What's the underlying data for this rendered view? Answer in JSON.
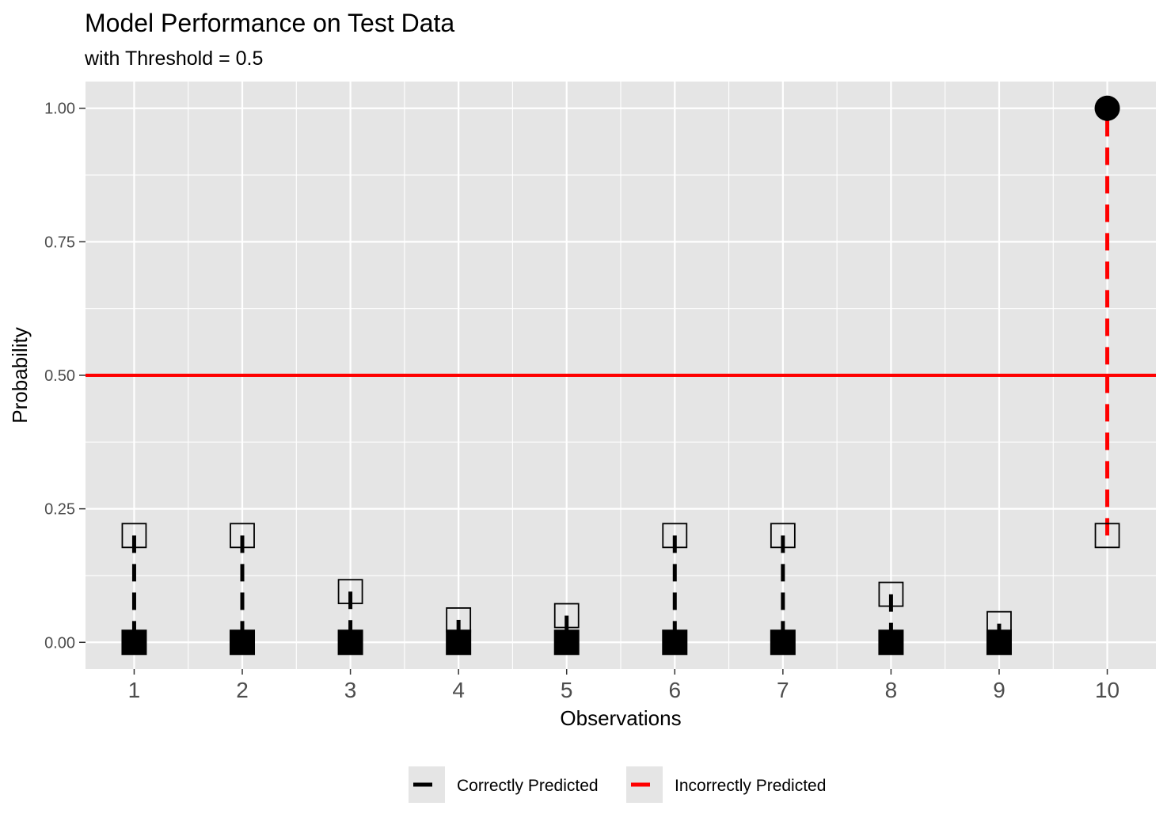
{
  "chart_data": {
    "type": "scatter",
    "title": "Model Performance on Test Data",
    "subtitle": "with Threshold = 0.5",
    "xlabel": "Observations",
    "ylabel": "Probability",
    "categories": [
      "1",
      "2",
      "3",
      "4",
      "5",
      "6",
      "7",
      "8",
      "9",
      "10"
    ],
    "x": [
      1,
      2,
      3,
      4,
      5,
      6,
      7,
      8,
      9,
      10
    ],
    "actual": [
      0,
      0,
      0,
      0,
      0,
      0,
      0,
      0,
      0,
      1
    ],
    "predicted": [
      0.2,
      0.2,
      0.095,
      0.042,
      0.05,
      0.2,
      0.2,
      0.09,
      0.035,
      0.2
    ],
    "correct": [
      true,
      true,
      true,
      true,
      true,
      true,
      true,
      true,
      true,
      false
    ],
    "threshold": 0.5,
    "threshold_color": "#ff0000",
    "ylim": [
      -0.05,
      1.05
    ],
    "xlim": [
      0.55,
      10.45
    ],
    "yticks": [
      0,
      0.25,
      0.5,
      0.75,
      1
    ],
    "ytick_labels": [
      "0.00",
      "0.25",
      "0.50",
      "0.75",
      "1.00"
    ],
    "grid": true,
    "legend": {
      "position": "bottom",
      "entries": [
        {
          "label": "Correctly Predicted",
          "color": "#000000"
        },
        {
          "label": "Incorrectly Predicted",
          "color": "#ff0000"
        }
      ]
    },
    "colors": {
      "panel_background": "#e5e5e5",
      "grid": "#ffffff",
      "correct": "#000000",
      "incorrect": "#ff0000"
    }
  }
}
